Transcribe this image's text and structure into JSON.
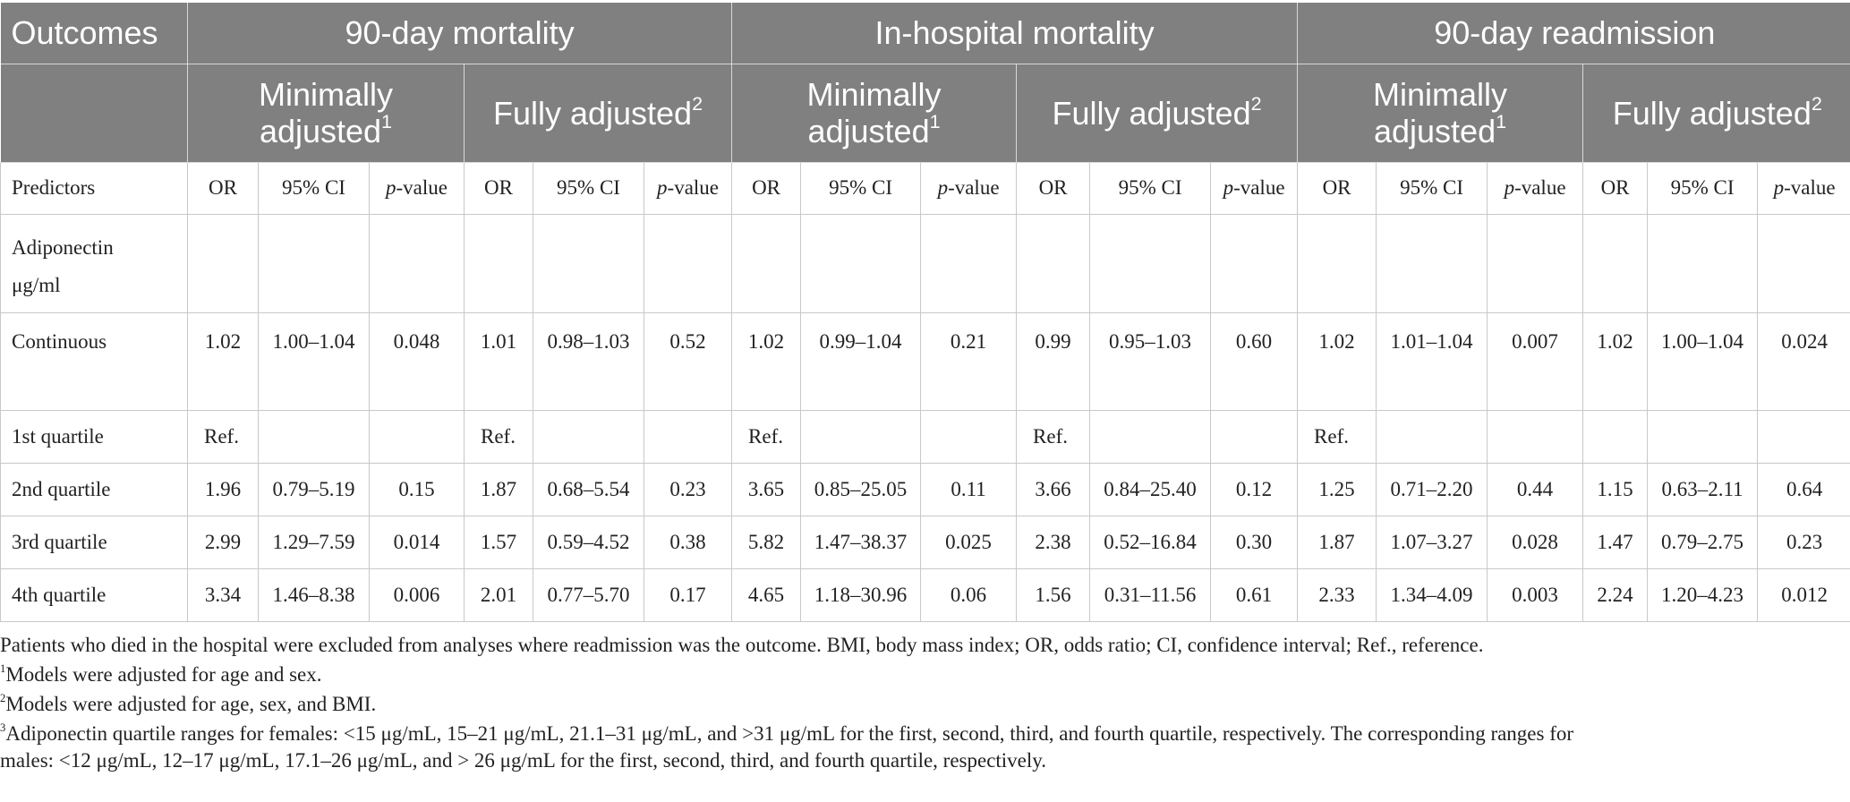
{
  "header": {
    "outcomes_label": "Outcomes",
    "groups": [
      "90-day mortality",
      "In-hospital mortality",
      "90-day readmission"
    ],
    "minimally_line1": "Minimally",
    "minimally_line2": "adjusted",
    "minimally_sup": "1",
    "fully": "Fully adjusted",
    "fully_sup": "2"
  },
  "subheader": {
    "predictors": "Predictors",
    "or": "OR",
    "ci": "95% CI",
    "p_ital": "p",
    "p_rest": "-value"
  },
  "adiponectin": {
    "line1": "Adiponectin",
    "line2": "μg/ml"
  },
  "rows": [
    {
      "label": "Continuous",
      "cells": [
        "1.02",
        "1.00–1.04",
        "0.048",
        "1.01",
        "0.98–1.03",
        "0.52",
        "1.02",
        "0.99–1.04",
        "0.21",
        "0.99",
        "0.95–1.03",
        "0.60",
        "1.02",
        "1.01–1.04",
        "0.007",
        "1.02",
        "1.00–1.04",
        "0.024"
      ]
    },
    {
      "label": "1st quartile",
      "cells": [
        "Ref.",
        "",
        "",
        "Ref.",
        "",
        "",
        "Ref.",
        "",
        "",
        "Ref.",
        "",
        "",
        "Ref.",
        "",
        "",
        "",
        "",
        ""
      ]
    },
    {
      "label": "2nd quartile",
      "cells": [
        "1.96",
        "0.79–5.19",
        "0.15",
        "1.87",
        "0.68–5.54",
        "0.23",
        "3.65",
        "0.85–25.05",
        "0.11",
        "3.66",
        "0.84–25.40",
        "0.12",
        "1.25",
        "0.71–2.20",
        "0.44",
        "1.15",
        "0.63–2.11",
        "0.64"
      ]
    },
    {
      "label": "3rd quartile",
      "cells": [
        "2.99",
        "1.29–7.59",
        "0.014",
        "1.57",
        "0.59–4.52",
        "0.38",
        "5.82",
        "1.47–38.37",
        "0.025",
        "2.38",
        "0.52–16.84",
        "0.30",
        "1.87",
        "1.07–3.27",
        "0.028",
        "1.47",
        "0.79–2.75",
        "0.23"
      ]
    },
    {
      "label": "4th quartile",
      "cells": [
        "3.34",
        "1.46–8.38",
        "0.006",
        "2.01",
        "0.77–5.70",
        "0.17",
        "4.65",
        "1.18–30.96",
        "0.06",
        "1.56",
        "0.31–11.56",
        "0.61",
        "2.33",
        "1.34–4.09",
        "0.003",
        "2.24",
        "1.20–4.23",
        "0.012"
      ]
    }
  ],
  "notes": {
    "main": "Patients who died in the hospital were excluded from analyses where readmission was the outcome. BMI, body mass index; OR, odds ratio; CI, confidence interval; Ref., reference.",
    "n1_sup": "1",
    "n1": "Models were adjusted for age and sex.",
    "n2_sup": "2",
    "n2": "Models were adjusted for age, sex, and BMI.",
    "n3_sup": "3",
    "n3_line1": "Adiponectin quartile ranges for females: <15 μg/mL, 15–21 μg/mL, 21.1–31 μg/mL, and >31 μg/mL for the first, second, third, and fourth quartile, respectively. The corresponding ranges for",
    "n3_line2": "males: <12 μg/mL, 12–17 μg/mL, 17.1–26 μg/mL, and > 26 μg/mL for the first, second, third, and fourth quartile, respectively."
  }
}
